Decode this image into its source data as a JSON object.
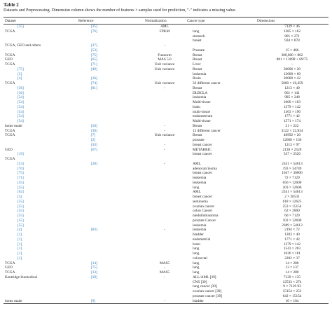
{
  "header": {
    "title": "Table 2",
    "caption": "Datasets and Preprocessing. Dimension column shows the number of features × samples used for prediction, \"-\" indicates a missing value."
  },
  "table": {
    "columns": [
      "Dataset",
      "Reference",
      "Normalization",
      "Cancer type",
      "Dimensions"
    ],
    "rows": [
      [
        "[35]",
        "[25]",
        "AML",
        null,
        "7129 × 46"
      ],
      [
        "TCGA",
        "[76]",
        "FPKM",
        "lung",
        "1385 × 162"
      ],
      [
        null,
        null,
        null,
        "stomach",
        "801 × 271"
      ],
      [
        null,
        null,
        null,
        "breast",
        "934 × 878"
      ],
      [
        "TCGA, GEO and others",
        "[37]",
        "-",
        null,
        null
      ],
      [
        null,
        "[53]",
        null,
        "Prostate",
        "15 × 466"
      ],
      [
        "TCGA",
        "[75]",
        "Funnorm",
        "Breast",
        "300,000 × 862"
      ],
      [
        "GEO",
        "[65]",
        "MAS 5.0",
        "Breast",
        "881 × 13698 + 69/75"
      ],
      [
        "TCGA",
        "[71]",
        "Unit variance",
        "Liver",
        "-"
      ],
      [
        "[75]",
        "[49]",
        "Unit variance",
        "Breast",
        "30006 × 20"
      ],
      [
        "[2]",
        null,
        null,
        "leukemia",
        "12600 × 60"
      ],
      [
        "[4]",
        "[16]",
        null,
        "Brain",
        "20000 × 42"
      ],
      [
        "TCGA",
        "[74]",
        "Unit variance",
        "33 different cancer",
        "5000 × 10,459"
      ],
      [
        "[36]",
        "[81]",
        "-",
        "Breast",
        "1213 × 49"
      ],
      [
        "[36]",
        null,
        null,
        "DLBCLA",
        "661 × 141"
      ],
      [
        "[54]",
        null,
        null,
        "leukemia",
        "985 × 248"
      ],
      [
        "[54]",
        null,
        null,
        "Multi-tissue",
        "1000 × 103"
      ],
      [
        "[54]",
        null,
        null,
        "brain",
        "1379 × 142"
      ],
      [
        "[54]",
        null,
        null,
        "multi-tissue",
        "1363 × 190"
      ],
      [
        "[54]",
        null,
        null,
        "endometrium",
        "1771 × 42"
      ],
      [
        "[54]",
        null,
        null,
        "Multi-tissue",
        "1571 × 174"
      ],
      [
        "home made",
        "[50]",
        "-",
        "Breast",
        "21 × 222"
      ],
      [
        "TCGA",
        "[30]",
        "-",
        "12 different cancer",
        "3122 × 22,834"
      ],
      [
        "TCGA",
        "[7]",
        "Unit variance",
        "Breast",
        "40992 × 20"
      ],
      [
        null,
        "[2]",
        null,
        "prostate",
        "12600 × 136"
      ],
      [
        null,
        "[33]",
        "-",
        "breast cancer",
        "1213 × 97"
      ],
      [
        "GEO",
        "[67]",
        "-",
        "METABRIC",
        "2136 × 2520"
      ],
      [
        "[19]",
        null,
        null,
        "breast cancer",
        "547 × 2520"
      ],
      [
        "TCGA",
        null,
        null,
        null,
        null
      ],
      [
        "[53]",
        "[28]",
        "-",
        "AML",
        "2341 × 54613"
      ],
      [
        "[70]",
        null,
        null,
        "adenocarcinoma",
        "193 × 34749"
      ],
      [
        "[75]",
        null,
        null,
        "breast cancer",
        "1047 × 30006"
      ],
      [
        "[71]",
        null,
        null,
        "leukemia",
        "72 × 7129"
      ],
      [
        "[55]",
        null,
        null,
        "leukemia",
        "656 × 12600"
      ],
      [
        "[55]",
        null,
        null,
        "lung",
        "203 × 12600"
      ],
      [
        "[62]",
        null,
        null,
        "AML",
        "2341 × 54613"
      ],
      [
        "[3]",
        null,
        null,
        "breast cancer",
        "2 × 20531"
      ],
      [
        "[55]",
        null,
        null,
        "seminoma",
        "618 × 12625"
      ],
      [
        "[55]",
        null,
        null,
        "ovarian cancer",
        "253 × 15154"
      ],
      [
        "[55]",
        null,
        null,
        "colon Cancer",
        "62 × 2000"
      ],
      [
        "[55]",
        null,
        null,
        "medulloblastoma",
        "60 × 7129"
      ],
      [
        "[55]",
        null,
        null,
        "prostate Cancer",
        "102 × 12600"
      ],
      [
        "[55]",
        null,
        null,
        "leukemia",
        "2389 × 54613"
      ],
      [
        "[4]",
        "[83]",
        "-",
        "leukemia",
        "2194 × 72"
      ],
      [
        "[1]",
        null,
        null,
        "bladder",
        "1203 × 40"
      ],
      [
        "[1]",
        null,
        null,
        "endometrial",
        "1771 × 42"
      ],
      [
        "[1]",
        null,
        null,
        "brain",
        "1379 × 142"
      ],
      [
        "[1]",
        null,
        null,
        "lung",
        "1543 × 203"
      ],
      [
        "[1]",
        null,
        null,
        "lung",
        "1626 × 181"
      ],
      [
        "[1]",
        null,
        null,
        "colorectal",
        "2202 × 37"
      ],
      [
        "TCGA",
        "[14]",
        "MAS5",
        "lung",
        "14 × 280"
      ],
      [
        "GEO",
        "[75]",
        "-",
        "lung",
        "13 × 137"
      ],
      [
        "TCGA",
        "[13]",
        "MAS5",
        "lung",
        "14 × 280"
      ],
      [
        "Kentridge biomedical",
        "[39]",
        "-",
        "ALL/AML [39]",
        "7129 × 135"
      ],
      [
        null,
        null,
        null,
        "CNS [39]",
        "12533 × 274"
      ],
      [
        null,
        null,
        null,
        "lung cancer [39]",
        "9 × 7129 93"
      ],
      [
        null,
        null,
        null,
        "ovarian cancer [39]",
        "15154 × 253"
      ],
      [
        null,
        null,
        null,
        "prostate cancer [39]",
        "642 × 15154"
      ],
      [
        "home made",
        "[9]",
        "-",
        "bladder",
        "10 × 104"
      ]
    ]
  }
}
